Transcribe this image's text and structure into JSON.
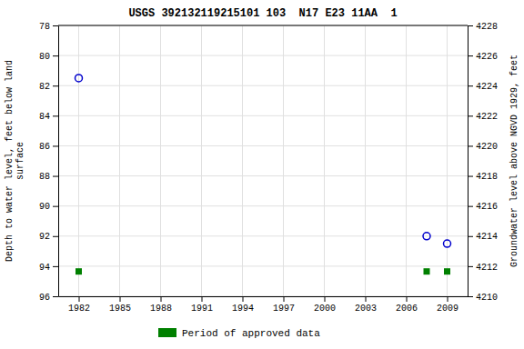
{
  "chart_data": {
    "type": "scatter",
    "title": "USGS 392132119215101 103  N17 E23 11AA  1",
    "y_label": "Depth to water level, feet below land\nsurface",
    "y2_label": "Groundwater level above NGVD 1929, feet",
    "xlim": [
      1980.5,
      2010.5
    ],
    "xticks": [
      1982,
      1985,
      1988,
      1991,
      1994,
      1997,
      2000,
      2003,
      2006,
      2009
    ],
    "ylim": [
      96,
      78
    ],
    "yticks": [
      78,
      80,
      82,
      84,
      86,
      88,
      90,
      92,
      94,
      96
    ],
    "y2lim": [
      4210,
      4228
    ],
    "y2ticks": [
      4228,
      4226,
      4224,
      4222,
      4220,
      4218,
      4216,
      4214,
      4212,
      4210
    ],
    "grid": true,
    "legend": "bottom",
    "series": [
      {
        "color": "#0000cc",
        "marker": "circle",
        "x": [
          1982.0,
          2007.5,
          2009.0
        ],
        "values": [
          81.5,
          92.0,
          92.5
        ]
      },
      {
        "name": "Period of approved data",
        "color": "#008000",
        "marker": "square",
        "x": [
          1982.0,
          2007.5,
          2009.0
        ],
        "values": [
          94.35,
          94.35,
          94.35
        ]
      }
    ]
  }
}
